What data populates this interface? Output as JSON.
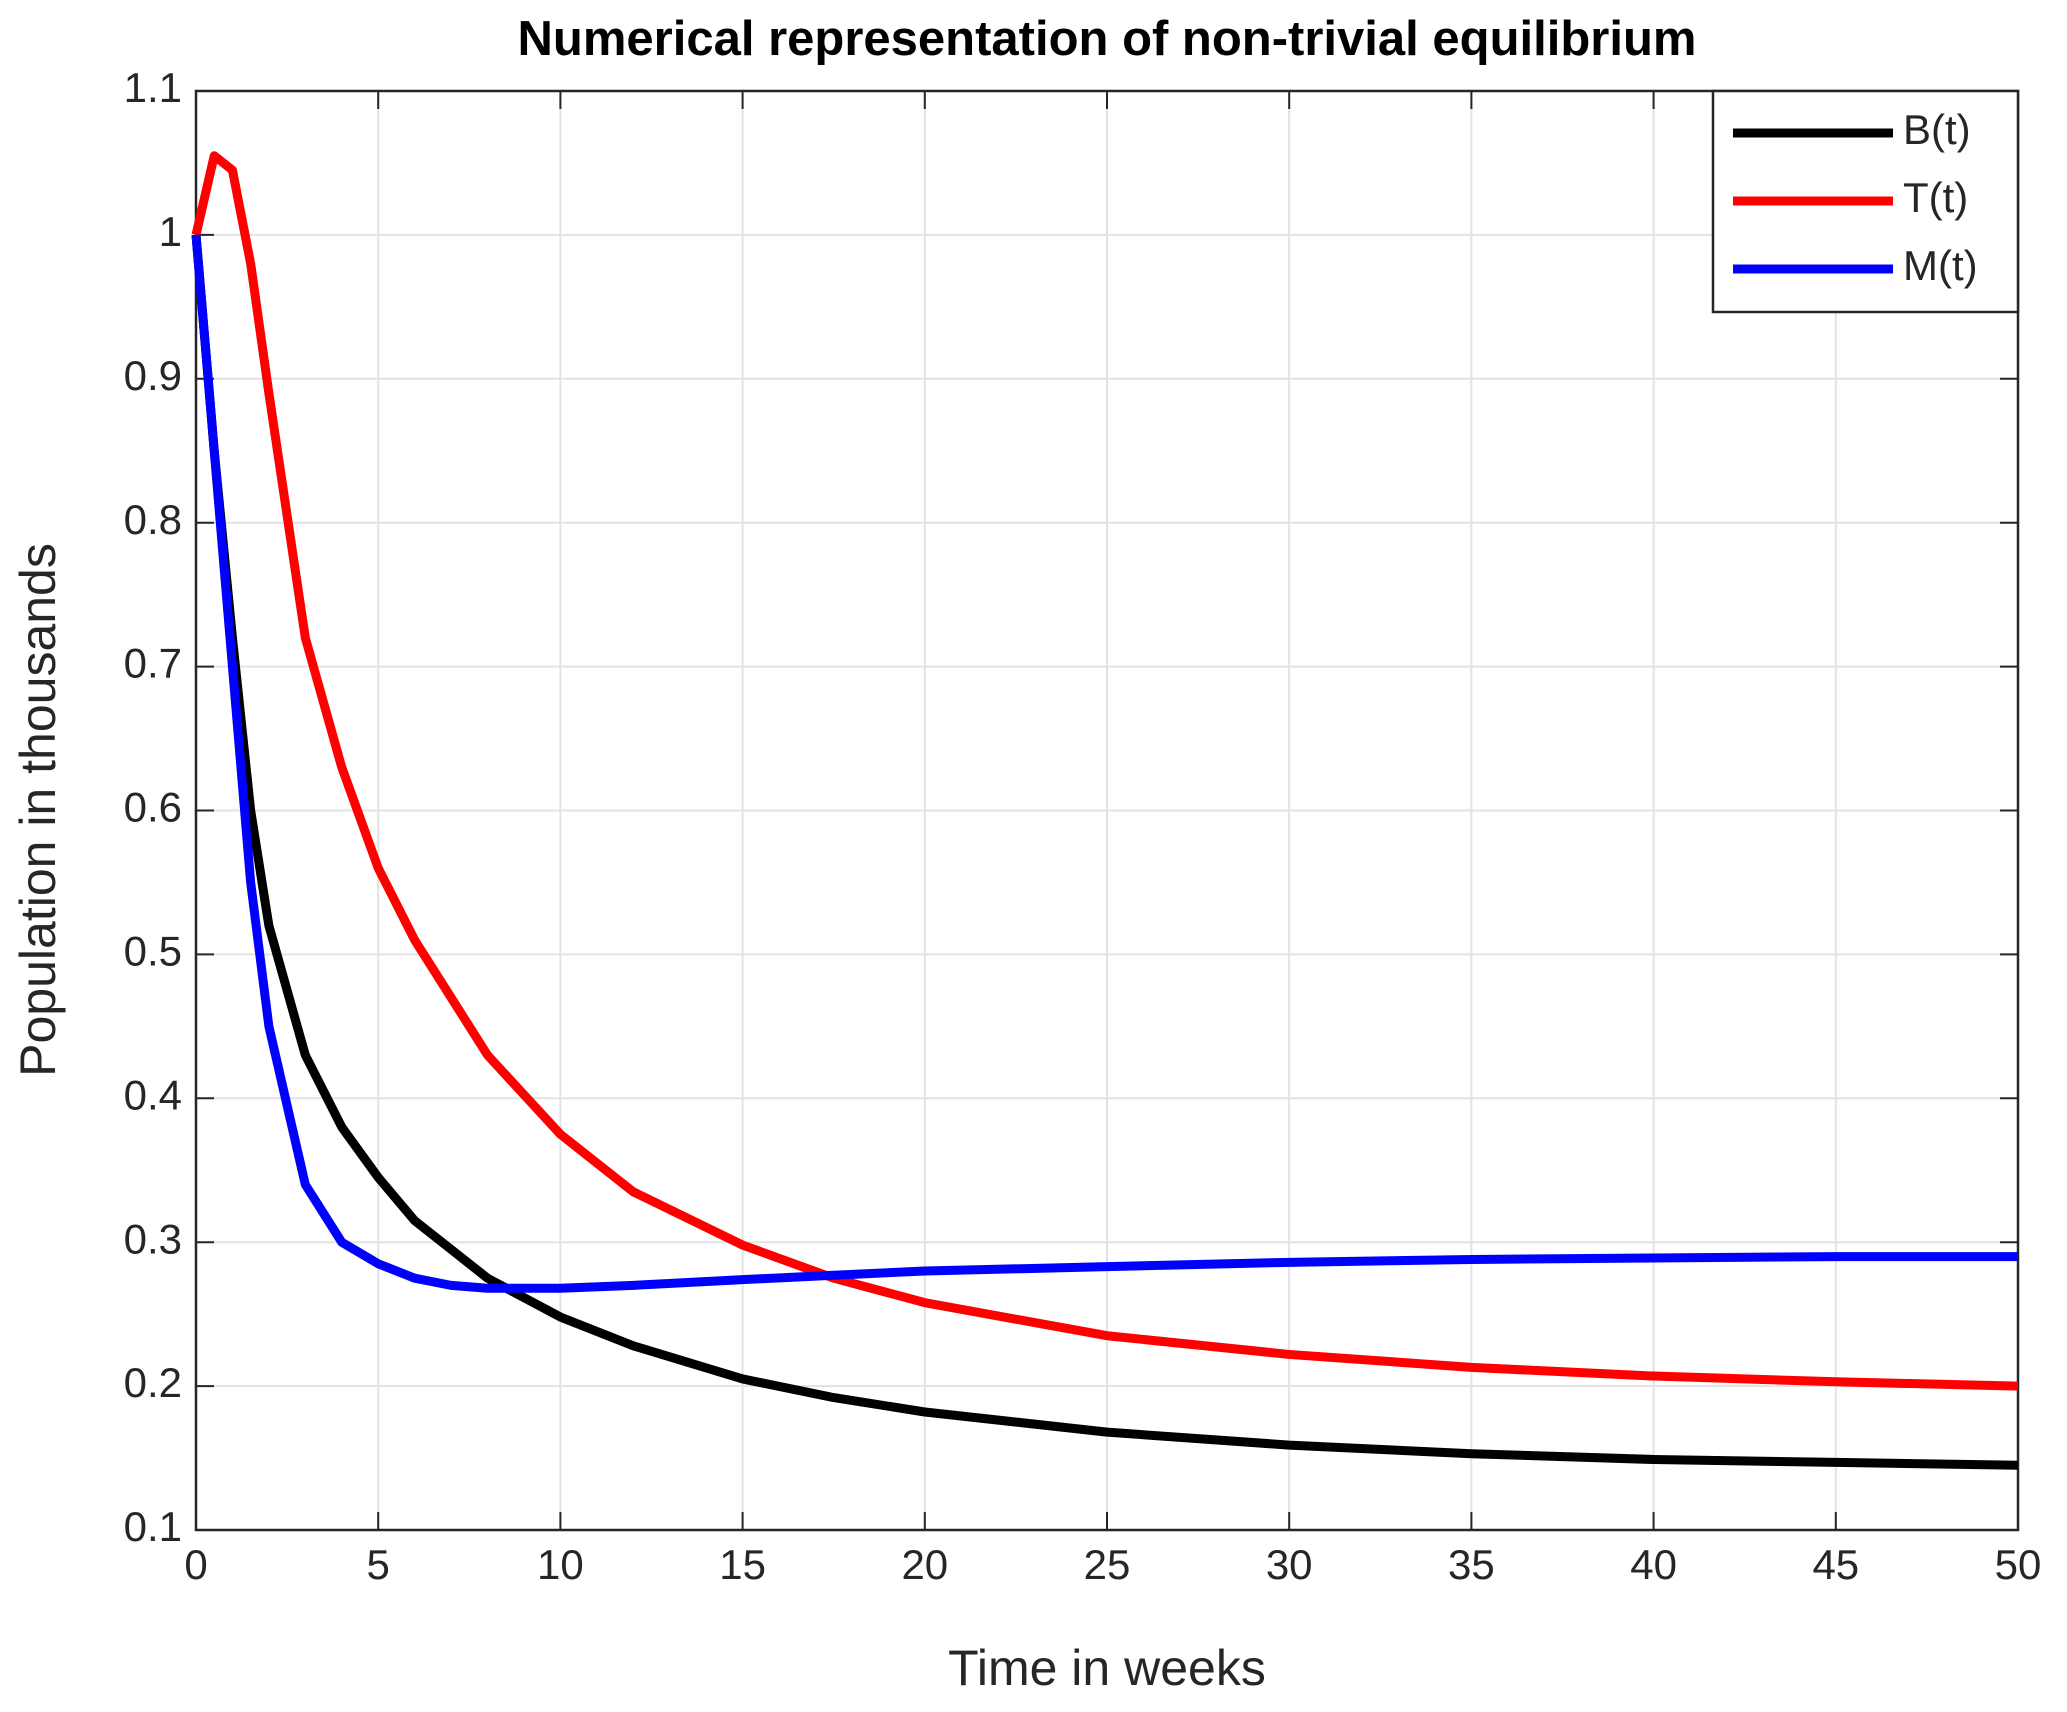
{
  "chart_data": {
    "type": "line",
    "title": "Numerical representation of non-trivial equilibrium",
    "xlabel": "Time in weeks",
    "ylabel": "Population in thousands",
    "x": [
      0,
      0.5,
      1,
      1.5,
      2,
      3,
      4,
      5,
      6,
      7,
      8,
      10,
      12,
      15,
      17.5,
      20,
      25,
      30,
      35,
      40,
      45,
      50
    ],
    "series": [
      {
        "name": "B(t)",
        "color": "#000000",
        "values": [
          1,
          0.85,
          0.72,
          0.6,
          0.52,
          0.43,
          0.38,
          0.345,
          0.315,
          0.295,
          0.275,
          0.248,
          0.228,
          0.205,
          0.192,
          0.182,
          0.168,
          0.159,
          0.153,
          0.149,
          0.147,
          0.145
        ]
      },
      {
        "name": "T(t)",
        "color": "#ff0000",
        "values": [
          1,
          1.055,
          1.045,
          0.98,
          0.89,
          0.72,
          0.63,
          0.56,
          0.51,
          0.47,
          0.43,
          0.375,
          0.335,
          0.298,
          0.275,
          0.258,
          0.235,
          0.222,
          0.213,
          0.207,
          0.203,
          0.2
        ]
      },
      {
        "name": "M(t)",
        "color": "#0000ff",
        "values": [
          1,
          0.85,
          0.7,
          0.55,
          0.45,
          0.34,
          0.3,
          0.285,
          0.275,
          0.27,
          0.268,
          0.268,
          0.27,
          0.274,
          0.277,
          0.28,
          0.283,
          0.286,
          0.288,
          0.289,
          0.29,
          0.29
        ]
      }
    ],
    "xlim": [
      0,
      50
    ],
    "xticks": [
      0,
      5,
      10,
      15,
      20,
      25,
      30,
      35,
      40,
      45,
      50
    ],
    "ylim": [
      0.1,
      1.1
    ],
    "yticks": [
      0.1,
      0.2,
      0.3,
      0.4,
      0.5,
      0.6,
      0.7,
      0.8,
      0.9,
      1,
      1.1
    ],
    "grid": true,
    "legend": "upper-right"
  }
}
